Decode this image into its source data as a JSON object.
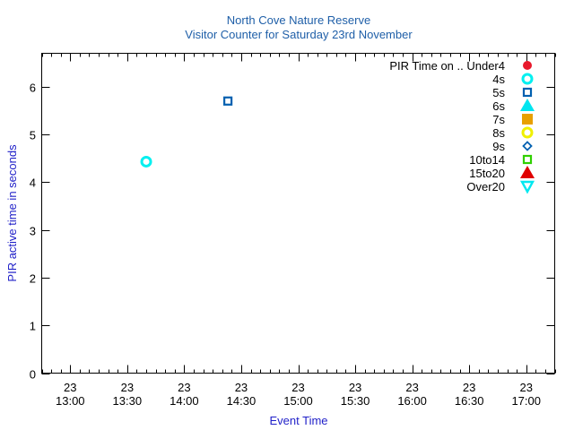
{
  "chart_data": {
    "type": "scatter",
    "title": "North Cove Nature Reserve",
    "subtitle": "Visitor Counter for Saturday 23rd November",
    "xlabel": "Event Time",
    "ylabel": "PIR active time in seconds",
    "xlim": [
      "12:45",
      "17:15"
    ],
    "ylim": [
      0,
      6.7
    ],
    "x_ticks": [
      {
        "time": "13:00",
        "day": "23"
      },
      {
        "time": "13:30",
        "day": "23"
      },
      {
        "time": "14:00",
        "day": "23"
      },
      {
        "time": "14:30",
        "day": "23"
      },
      {
        "time": "15:00",
        "day": "23"
      },
      {
        "time": "15:30",
        "day": "23"
      },
      {
        "time": "16:00",
        "day": "23"
      },
      {
        "time": "16:30",
        "day": "23"
      },
      {
        "time": "17:00",
        "day": "23"
      }
    ],
    "y_ticks": [
      0,
      1,
      2,
      3,
      4,
      5,
      6
    ],
    "grid": false,
    "legend_position": "top-right",
    "legend_prefix": "PIR Time on ..",
    "series": [
      {
        "name": "Under4",
        "color": "#e8192c",
        "marker": "filled-circle",
        "points": []
      },
      {
        "name": "4s",
        "color": "#00f0f0",
        "marker": "open-circle",
        "points": [
          {
            "x": "13:40",
            "y": 4.43
          }
        ]
      },
      {
        "name": "5s",
        "color": "#0060b0",
        "marker": "open-square",
        "points": [
          {
            "x": "14:23",
            "y": 5.7
          }
        ]
      },
      {
        "name": "6s",
        "color": "#00e5f0",
        "marker": "filled-triangle-up",
        "points": []
      },
      {
        "name": "7s",
        "color": "#e8a000",
        "marker": "filled-square",
        "points": []
      },
      {
        "name": "8s",
        "color": "#f0f000",
        "marker": "open-circle",
        "points": []
      },
      {
        "name": "9s",
        "color": "#0060b0",
        "marker": "open-diamond",
        "points": []
      },
      {
        "name": "10to14",
        "color": "#30d000",
        "marker": "open-square",
        "points": []
      },
      {
        "name": "15to20",
        "color": "#e00000",
        "marker": "filled-triangle-up",
        "points": []
      },
      {
        "name": "Over20",
        "color": "#00e8f0",
        "marker": "open-triangle-down",
        "points": []
      }
    ]
  }
}
